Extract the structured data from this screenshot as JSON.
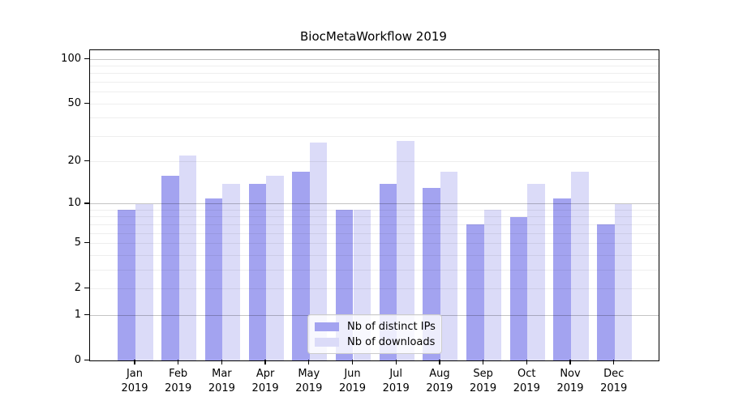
{
  "title": "BiocMetaWorkflow 2019",
  "colors": {
    "distinct_ips_bar": "#a3a3f0",
    "downloads_bar": "#dbdbf8",
    "axis": "#000000",
    "gridline_minor": "#ebebeb",
    "gridline_major": "#c7c7c7",
    "legend_border": "#cccccc"
  },
  "chart_data": {
    "type": "bar",
    "title": "BiocMetaWorkflow 2019",
    "xlabel": "",
    "ylabel": "",
    "categories": [
      "Jan",
      "Feb",
      "Mar",
      "Apr",
      "May",
      "Jun",
      "Jul",
      "Aug",
      "Sep",
      "Oct",
      "Nov",
      "Dec"
    ],
    "category_year": "2019",
    "series": [
      {
        "name": "Nb of distinct IPs",
        "color": "#a3a3f0",
        "values": [
          9,
          16,
          11,
          14,
          17,
          9,
          14,
          13,
          7,
          8,
          11,
          7
        ]
      },
      {
        "name": "Nb of downloads",
        "color": "#dbdbf8",
        "values": [
          10,
          22,
          14,
          16,
          27,
          9,
          28,
          17,
          9,
          14,
          17,
          10
        ]
      }
    ],
    "y_axis": {
      "scale": "log1p",
      "tick_values": [
        0,
        1,
        2,
        5,
        10,
        20,
        50,
        100
      ],
      "tick_labels": [
        "0",
        "1",
        "2",
        "5",
        "10",
        "20",
        "50",
        "100"
      ],
      "gridlines_minor": [
        2,
        3,
        4,
        5,
        6,
        7,
        8,
        9,
        20,
        30,
        40,
        50,
        60,
        70,
        80,
        90
      ],
      "gridlines_major": [
        1,
        10,
        100
      ],
      "ylim": [
        0,
        100
      ]
    },
    "grid": true,
    "legend_position": "inside-bottom-center"
  }
}
